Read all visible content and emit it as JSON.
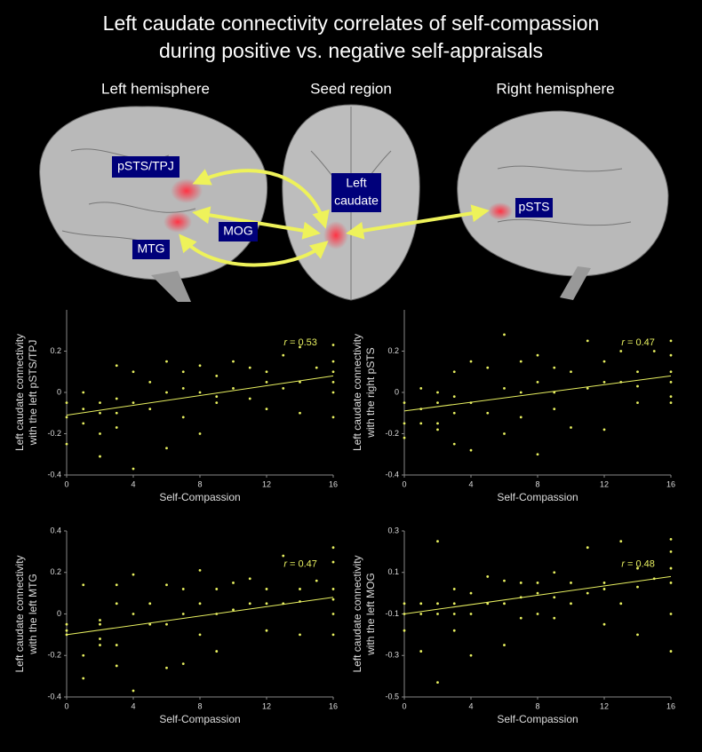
{
  "header": {
    "title": [
      "Left caudate connectivity correlates of self-compassion",
      "during positive vs. negative self-appraisals"
    ]
  },
  "brain_panels": [
    {
      "heading": "Left hemisphere",
      "regions": [
        [
          "pSTS/TPJ"
        ],
        [
          "MOG"
        ],
        [
          "MTG"
        ]
      ]
    },
    {
      "heading": "Seed region",
      "regions": [
        [
          "Left",
          "caudate"
        ]
      ]
    },
    {
      "heading": "Right hemisphere",
      "regions": [
        [
          "pSTS"
        ]
      ]
    }
  ],
  "chart_data": [
    {
      "type": "scatter",
      "color": "#e8f060",
      "x": [
        0,
        0,
        0,
        1,
        1,
        1,
        2,
        2,
        2,
        2,
        3,
        3,
        3,
        3,
        4,
        4,
        4,
        5,
        5,
        6,
        6,
        6,
        7,
        7,
        7,
        8,
        8,
        8,
        9,
        9,
        9,
        10,
        10,
        11,
        11,
        12,
        12,
        12,
        13,
        13,
        14,
        14,
        14,
        15,
        16,
        16,
        16,
        16,
        16,
        16
      ],
      "values": [
        -0.05,
        -0.12,
        -0.25,
        0,
        -0.08,
        -0.15,
        -0.1,
        -0.2,
        -0.31,
        -0.05,
        0.13,
        -0.03,
        -0.1,
        -0.17,
        0.1,
        -0.05,
        -0.37,
        0.05,
        -0.08,
        0.15,
        0,
        -0.27,
        0.1,
        0.02,
        -0.12,
        0.13,
        0,
        -0.2,
        0.08,
        -0.02,
        -0.05,
        0.15,
        0.02,
        0.12,
        -0.03,
        0.1,
        0.05,
        -0.08,
        0.18,
        0.02,
        0.22,
        0.05,
        -0.1,
        0.12,
        0.23,
        0.15,
        0.1,
        0.05,
        0,
        -0.12
      ],
      "fit": {
        "x": [
          0,
          16
        ],
        "values": [
          -0.11,
          0.08
        ]
      },
      "xlim": [
        0,
        16
      ],
      "xticks": [
        0,
        4,
        8,
        12,
        16
      ],
      "ylim": [
        -0.4,
        0.4
      ],
      "yticks": [
        -0.4,
        -0.2,
        0,
        0.2
      ],
      "xlabel": "Self-Compassion",
      "ylabel": [
        "Left caudate connectivity",
        "with the left pSTS/TPJ"
      ],
      "annotation": {
        "symbol": "r",
        "text": "= 0.53"
      }
    },
    {
      "type": "scatter",
      "color": "#e8f060",
      "x": [
        0,
        0,
        0,
        1,
        1,
        1,
        2,
        2,
        2,
        2,
        3,
        3,
        3,
        3,
        4,
        4,
        4,
        5,
        5,
        6,
        6,
        6,
        7,
        7,
        7,
        8,
        8,
        8,
        9,
        9,
        9,
        10,
        10,
        11,
        11,
        12,
        12,
        12,
        13,
        13,
        14,
        14,
        14,
        15,
        16,
        16,
        16,
        16,
        16,
        16
      ],
      "values": [
        -0.05,
        -0.15,
        -0.22,
        0.02,
        -0.08,
        -0.15,
        -0.05,
        -0.15,
        -0.18,
        0,
        0.1,
        -0.02,
        -0.1,
        -0.25,
        0.15,
        -0.05,
        -0.28,
        0.12,
        -0.1,
        0.28,
        0.02,
        -0.2,
        0.15,
        0,
        -0.12,
        0.18,
        0.05,
        -0.3,
        0.12,
        0,
        -0.08,
        0.1,
        -0.17,
        0.25,
        0.02,
        0.15,
        0.05,
        -0.18,
        0.2,
        0.05,
        0.1,
        0.03,
        -0.05,
        0.2,
        0.25,
        0.18,
        0.1,
        0.05,
        -0.02,
        -0.05
      ],
      "fit": {
        "x": [
          0,
          16
        ],
        "values": [
          -0.09,
          0.08
        ]
      },
      "xlim": [
        0,
        16
      ],
      "xticks": [
        0,
        4,
        8,
        12,
        16
      ],
      "ylim": [
        -0.4,
        0.4
      ],
      "yticks": [
        -0.4,
        -0.2,
        0,
        0.2
      ],
      "xlabel": "Self-Compassion",
      "ylabel": [
        "Left caudate connectivity",
        "with the right pSTS"
      ],
      "annotation": {
        "symbol": "r",
        "text": "= 0.47"
      }
    },
    {
      "type": "scatter",
      "color": "#e8f060",
      "x": [
        0,
        0,
        0,
        1,
        1,
        1,
        2,
        2,
        2,
        2,
        3,
        3,
        3,
        3,
        4,
        4,
        4,
        5,
        5,
        6,
        6,
        6,
        7,
        7,
        7,
        8,
        8,
        8,
        9,
        9,
        9,
        10,
        10,
        11,
        11,
        12,
        12,
        12,
        13,
        13,
        14,
        14,
        14,
        15,
        16,
        16,
        16,
        16,
        16,
        16
      ],
      "values": [
        -0.05,
        -0.1,
        -0.08,
        0.14,
        -0.2,
        -0.31,
        -0.05,
        -0.12,
        -0.15,
        -0.03,
        0.14,
        0.05,
        -0.15,
        -0.25,
        0.19,
        0,
        -0.37,
        0.05,
        -0.05,
        0.14,
        -0.05,
        -0.26,
        0.12,
        0,
        -0.24,
        0.21,
        0.05,
        -0.1,
        0.12,
        0,
        -0.18,
        0.15,
        0.02,
        0.17,
        0.05,
        0.12,
        0.05,
        -0.08,
        0.28,
        0.05,
        0.12,
        0.06,
        -0.1,
        0.16,
        0.32,
        0.25,
        0.12,
        0.07,
        0,
        -0.1
      ],
      "fit": {
        "x": [
          0,
          16
        ],
        "values": [
          -0.1,
          0.08
        ]
      },
      "xlim": [
        0,
        16
      ],
      "xticks": [
        0,
        4,
        8,
        12,
        16
      ],
      "ylim": [
        -0.4,
        0.4
      ],
      "yticks": [
        -0.4,
        -0.2,
        0,
        0.2,
        0.4
      ],
      "xlabel": "Self-Compassion",
      "ylabel": [
        "Left caudate connectivity",
        "with the left MTG"
      ],
      "annotation": {
        "symbol": "r",
        "text": "= 0.47"
      }
    },
    {
      "type": "scatter",
      "color": "#e8f060",
      "x": [
        0,
        0,
        0,
        1,
        1,
        1,
        2,
        2,
        2,
        2,
        3,
        3,
        3,
        3,
        4,
        4,
        4,
        5,
        5,
        6,
        6,
        6,
        7,
        7,
        7,
        8,
        8,
        8,
        9,
        9,
        9,
        10,
        10,
        11,
        11,
        12,
        12,
        12,
        13,
        13,
        14,
        14,
        14,
        15,
        16,
        16,
        16,
        16,
        16,
        16
      ],
      "values": [
        -0.18,
        -0.05,
        -0.1,
        -0.28,
        -0.05,
        -0.1,
        0.25,
        -0.1,
        -0.43,
        -0.05,
        0.02,
        -0.05,
        -0.1,
        -0.18,
        0,
        -0.1,
        -0.3,
        0.08,
        -0.05,
        0.06,
        -0.05,
        -0.25,
        0.05,
        -0.02,
        -0.12,
        0.05,
        0,
        -0.1,
        0.1,
        -0.02,
        -0.12,
        0.05,
        -0.05,
        0.22,
        0,
        0.05,
        0.02,
        -0.15,
        0.25,
        -0.05,
        0.12,
        0.03,
        -0.2,
        0.07,
        0.26,
        0.2,
        0.12,
        0.05,
        -0.1,
        -0.28
      ],
      "fit": {
        "x": [
          0,
          16
        ],
        "values": [
          -0.1,
          0.08
        ]
      },
      "xlim": [
        0,
        16
      ],
      "xticks": [
        0,
        4,
        8,
        12,
        16
      ],
      "ylim": [
        -0.5,
        0.3
      ],
      "yticks": [
        -0.5,
        -0.3,
        -0.1,
        0.1,
        0.3
      ],
      "xlabel": "Self-Compassion",
      "ylabel": [
        "Left caudate connectivity",
        "with the left MOG"
      ],
      "annotation": {
        "symbol": "r",
        "text": "= 0.48"
      }
    }
  ]
}
